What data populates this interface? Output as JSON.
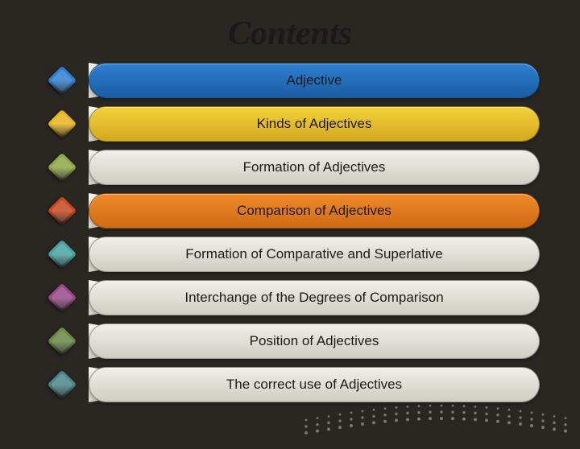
{
  "title": "Contents",
  "background_color": "#2a2723",
  "title_fontsize": 42,
  "label_fontsize": 17,
  "items": [
    {
      "label": "Adjective",
      "bar_color": "#2f7fd1",
      "bar_color2": "#1a5da3",
      "icon_color": "#2f7fd1"
    },
    {
      "label": "Kinds of Adjectives",
      "bar_color": "#f4d23b",
      "bar_color2": "#d4a81f",
      "icon_color": "#e8b420"
    },
    {
      "label": "Formation of Adjectives",
      "bar_color": "#f0efe9",
      "bar_color2": "#d0cdc1",
      "icon_color": "#8fa848"
    },
    {
      "label": "Comparison of Adjectives",
      "bar_color": "#f08a2a",
      "bar_color2": "#cf6a15",
      "icon_color": "#c94820"
    },
    {
      "label": "Formation of Comparative and Superlative",
      "bar_color": "#f0efe9",
      "bar_color2": "#d0cdc1",
      "icon_color": "#4aa3a3"
    },
    {
      "label": "Interchange of the Degrees of Comparison",
      "bar_color": "#f0efe9",
      "bar_color2": "#d0cdc1",
      "icon_color": "#9a4a8a"
    },
    {
      "label": "Position of Adjectives",
      "bar_color": "#f0efe9",
      "bar_color2": "#d0cdc1",
      "icon_color": "#6a8848"
    },
    {
      "label": "The correct use of Adjectives",
      "bar_color": "#f0efe9",
      "bar_color2": "#d0cdc1",
      "icon_color": "#4a868a"
    }
  ],
  "wedge_color_top": "#f5f5f0",
  "wedge_color_bottom": "#d4d2c8",
  "dot_color": "#c0bba8"
}
